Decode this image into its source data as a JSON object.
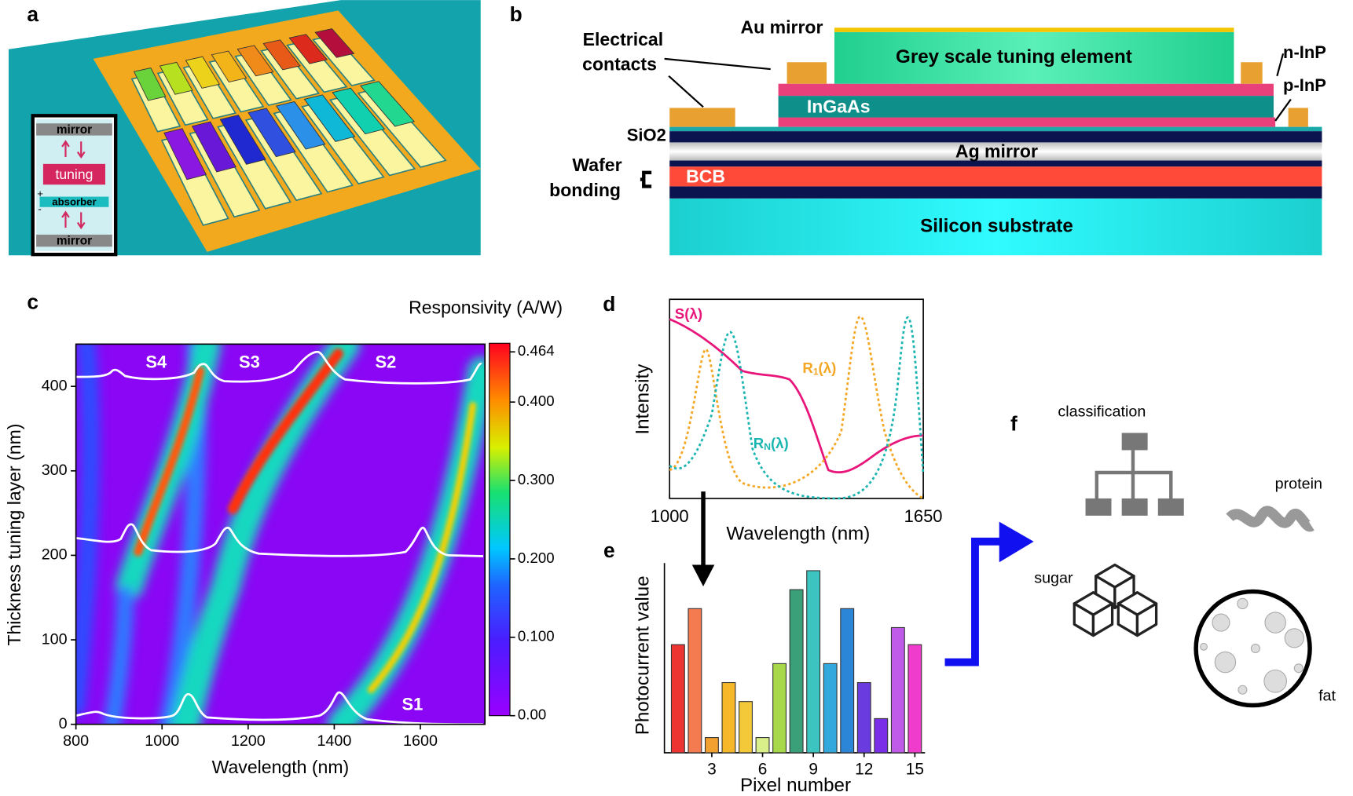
{
  "panel_labels": [
    "a",
    "b",
    "c",
    "d",
    "e",
    "f"
  ],
  "panel_a": {
    "inset": [
      "mirror",
      "tuning",
      "absorber",
      "mirror"
    ],
    "signs": [
      "+",
      "-"
    ]
  },
  "panel_b": {
    "au_mirror": "Au mirror",
    "electrical_contacts": [
      "Electrical",
      "contacts"
    ],
    "grey": "Grey scale tuning element",
    "n_inp": "n-InP",
    "p_inp": "p-InP",
    "ingaas": "InGaAs",
    "sio2": "SiO2",
    "ag": "Ag mirror",
    "wafer": [
      "Wafer",
      "bonding"
    ],
    "bcb": "BCB",
    "si": "Silicon substrate"
  },
  "chart_data": [
    {
      "type": "heatmap",
      "title": "Responsivity (A/W)",
      "xlabel": "Wavelength (nm)",
      "ylabel": "Thickness tuning layer (nm)",
      "xlim": [
        800,
        1750
      ],
      "xticks": [
        800,
        1000,
        1200,
        1400,
        1600
      ],
      "ylim": [
        0,
        450
      ],
      "yticks": [
        0,
        100,
        200,
        300,
        400
      ],
      "clim": [
        0,
        0.475
      ],
      "cticks": [
        {
          "value": 0,
          "label": "0.00"
        },
        {
          "value": 0.1,
          "label": "0.100"
        },
        {
          "value": 0.2,
          "label": "0.200"
        },
        {
          "value": 0.3,
          "label": "0.300"
        },
        {
          "value": 0.4,
          "label": "0.400"
        },
        0.464
      ],
      "annotations": [
        "S4",
        "S3",
        "S2",
        "S1"
      ]
    },
    {
      "type": "line",
      "xlabel": "Wavelength (nm)",
      "ylabel": "Intensity",
      "xlim": [
        1000,
        1650
      ],
      "xticks": [
        1000,
        1650
      ],
      "labels": [
        {
          "main": "S",
          "sub": "",
          "rest": "(λ)",
          "color": "#e8157a"
        },
        {
          "main": "R",
          "sub": "1",
          "rest": "(λ)",
          "color": "#f5a623"
        },
        {
          "main": "R",
          "sub": "N",
          "rest": "(λ)",
          "color": "#1ab5b0"
        }
      ]
    },
    {
      "type": "bar",
      "xlabel": "Pixel number",
      "ylabel": "Photocurrent value",
      "x": [
        1,
        2,
        3,
        4,
        5,
        6,
        7,
        8,
        9,
        10,
        11,
        12,
        13,
        14,
        15
      ],
      "values": [
        0.57,
        0.76,
        0.08,
        0.37,
        0.27,
        0.08,
        0.47,
        0.86,
        0.96,
        0.47,
        0.76,
        0.37,
        0.18,
        0.66,
        0.57
      ],
      "colors": [
        "#ee3333",
        "#f47a50",
        "#f2a030",
        "#f6b82a",
        "#f3c93a",
        "#d9f08a",
        "#a6d84a",
        "#3aa07a",
        "#3cc4c0",
        "#33a8dc",
        "#2b86d8",
        "#6a3ce0",
        "#7a2ee8",
        "#c05ae8",
        "#f03ccc"
      ],
      "xlim": [
        0.2,
        15.6
      ],
      "xticks": [
        3,
        6,
        9,
        12,
        15
      ],
      "ylim": [
        0,
        1
      ]
    }
  ],
  "panel_f": {
    "classification": "classification",
    "protein": "protein",
    "sugar": "sugar",
    "fat": "fat"
  }
}
